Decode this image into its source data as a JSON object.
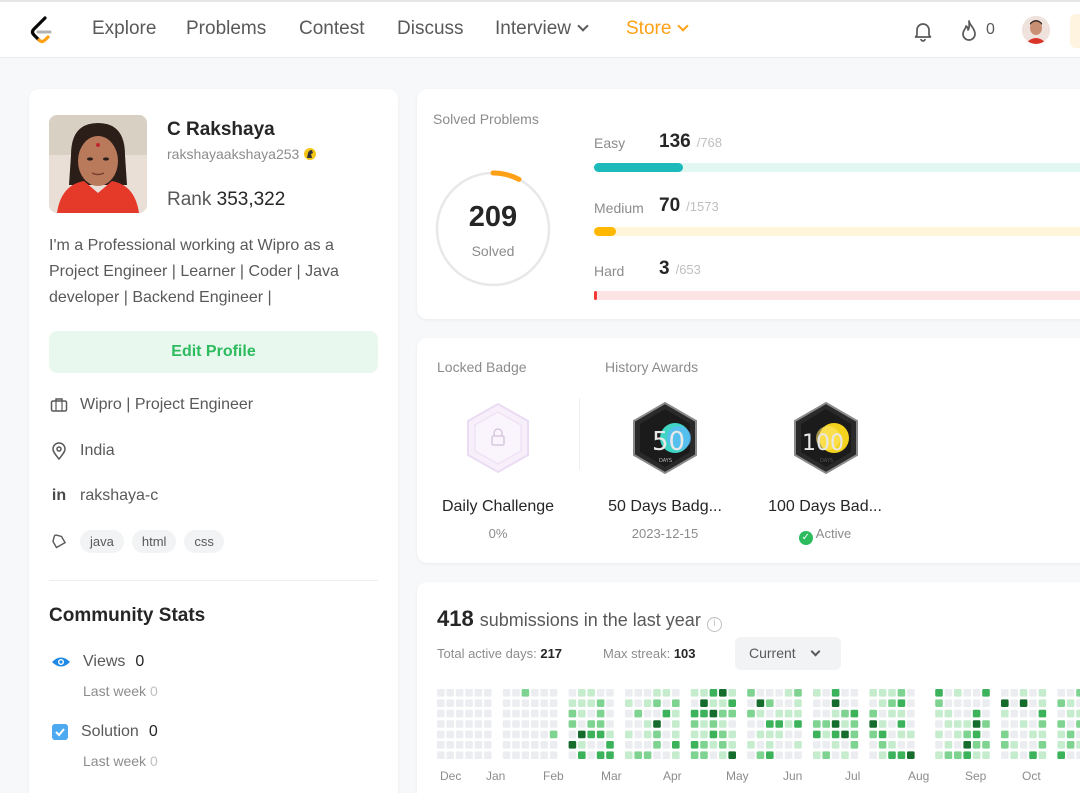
{
  "nav": {
    "items": [
      "Explore",
      "Problems",
      "Contest",
      "Discuss",
      "Interview",
      "Store"
    ],
    "streak_count": "0"
  },
  "profile": {
    "name": "C Rakshaya",
    "username": "rakshayaakshaya253",
    "rank_label": "Rank",
    "rank_value": "353,322",
    "bio": "I'm a Professional working at Wipro as a Project Engineer | Learner | Coder | Java developer | Backend Engineer |",
    "edit_label": "Edit Profile",
    "work": "Wipro | Project Engineer",
    "location": "India",
    "linkedin": "rakshaya-c",
    "skills": [
      "java",
      "html",
      "css"
    ]
  },
  "community": {
    "title": "Community Stats",
    "views_label": "Views",
    "views_value": "0",
    "views_last_label": "Last week",
    "views_last_value": "0",
    "solution_label": "Solution",
    "solution_value": "0",
    "solution_last_label": "Last week",
    "solution_last_value": "0"
  },
  "solved": {
    "title": "Solved Problems",
    "total": "209",
    "total_label": "Solved",
    "easy": {
      "label": "Easy",
      "count": "136",
      "total": "/768",
      "ratio": 0.177
    },
    "medium": {
      "label": "Medium",
      "count": "70",
      "total": "/1573",
      "ratio": 0.0445
    },
    "hard": {
      "label": "Hard",
      "count": "3",
      "total": "/653",
      "ratio": 0.0046
    }
  },
  "badges": {
    "locked_title": "Locked Badge",
    "history_title": "History Awards",
    "locked": {
      "name": "Daily Challenge",
      "progress": "0%"
    },
    "award1": {
      "name": "50 Days Badg...",
      "date": "2023-12-15",
      "art_text": "50",
      "art_sub": "DAYS"
    },
    "award2": {
      "name": "100 Days Bad...",
      "status": "Active",
      "art_text": "100",
      "art_sub": "DAYS"
    }
  },
  "submissions": {
    "count": "418",
    "title_rest": "submissions in the last year",
    "active_label": "Total active days:",
    "active_value": "217",
    "streak_label": "Max streak:",
    "streak_value": "103",
    "dropdown": "Current",
    "months": [
      "Dec",
      "Jan",
      "Feb",
      "Mar",
      "Apr",
      "May",
      "Jun",
      "Jul",
      "Aug",
      "Sep",
      "Oct"
    ]
  },
  "colors": {
    "accent_orange": "#ffa116",
    "easy": "#1cbaba",
    "easy_track": "#e2f7f2",
    "medium": "#ffb700",
    "medium_track": "#fff5db",
    "hard": "#f63737",
    "hard_track": "#fde3e3",
    "brand_green": "#2cbb5d"
  }
}
